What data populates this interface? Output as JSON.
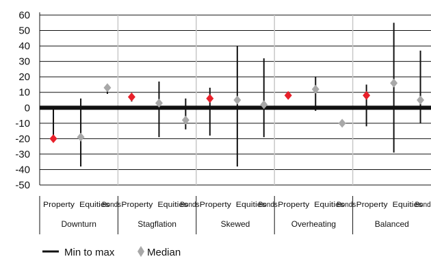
{
  "chart_data": {
    "type": "range-median",
    "ylim": [
      -50,
      60
    ],
    "yticks": [
      60,
      50,
      40,
      30,
      20,
      10,
      0,
      -10,
      -20,
      -30,
      -40,
      -50
    ],
    "groups": [
      {
        "name": "Downturn",
        "items": [
          {
            "label": "Property",
            "min": -21,
            "max": 1,
            "median": -20,
            "highlight": true
          },
          {
            "label": "Equities",
            "min": -38,
            "max": 6,
            "median": -19,
            "highlight": false
          },
          {
            "label": "Bonds",
            "min": 9,
            "max": 12,
            "median": 13,
            "highlight": false
          }
        ]
      },
      {
        "name": "Stagflation",
        "items": [
          {
            "label": "Property",
            "min": 4,
            "max": 7,
            "median": 7,
            "highlight": true
          },
          {
            "label": "Equities",
            "min": -19,
            "max": 17,
            "median": 3,
            "highlight": false
          },
          {
            "label": "Bonds",
            "min": -14,
            "max": 6,
            "median": -8,
            "highlight": false
          }
        ]
      },
      {
        "name": "Skewed",
        "items": [
          {
            "label": "Property",
            "min": -18,
            "max": 13,
            "median": 6,
            "highlight": true
          },
          {
            "label": "Equities",
            "min": -38,
            "max": 40,
            "median": 5,
            "highlight": false
          },
          {
            "label": "Bonds",
            "min": -19,
            "max": 32,
            "median": 2,
            "highlight": false
          }
        ]
      },
      {
        "name": "Overheating",
        "items": [
          {
            "label": "Property",
            "min": 8,
            "max": 9,
            "median": 8,
            "highlight": true
          },
          {
            "label": "Equities",
            "min": -2,
            "max": 20,
            "median": 12,
            "highlight": false
          },
          {
            "label": "Bonds",
            "min": -10,
            "max": -9,
            "median": -10,
            "highlight": false
          }
        ]
      },
      {
        "name": "Balanced",
        "items": [
          {
            "label": "Property",
            "min": -12,
            "max": 15,
            "median": 8,
            "highlight": true
          },
          {
            "label": "Equities",
            "min": -29,
            "max": 55,
            "median": 16,
            "highlight": false
          },
          {
            "label": "Bonds",
            "min": -10,
            "max": 37,
            "median": 5,
            "highlight": false
          }
        ]
      }
    ],
    "legend": [
      {
        "key": "range",
        "label": "Min to max"
      },
      {
        "key": "median",
        "label": "Median"
      }
    ],
    "colors": {
      "highlight": "#e8202a",
      "median": "#a8a8a8",
      "range": "#111111",
      "separator": "#c8c8c8",
      "grid": "#111111"
    },
    "grid": true,
    "legend_position": "bottom-left"
  }
}
